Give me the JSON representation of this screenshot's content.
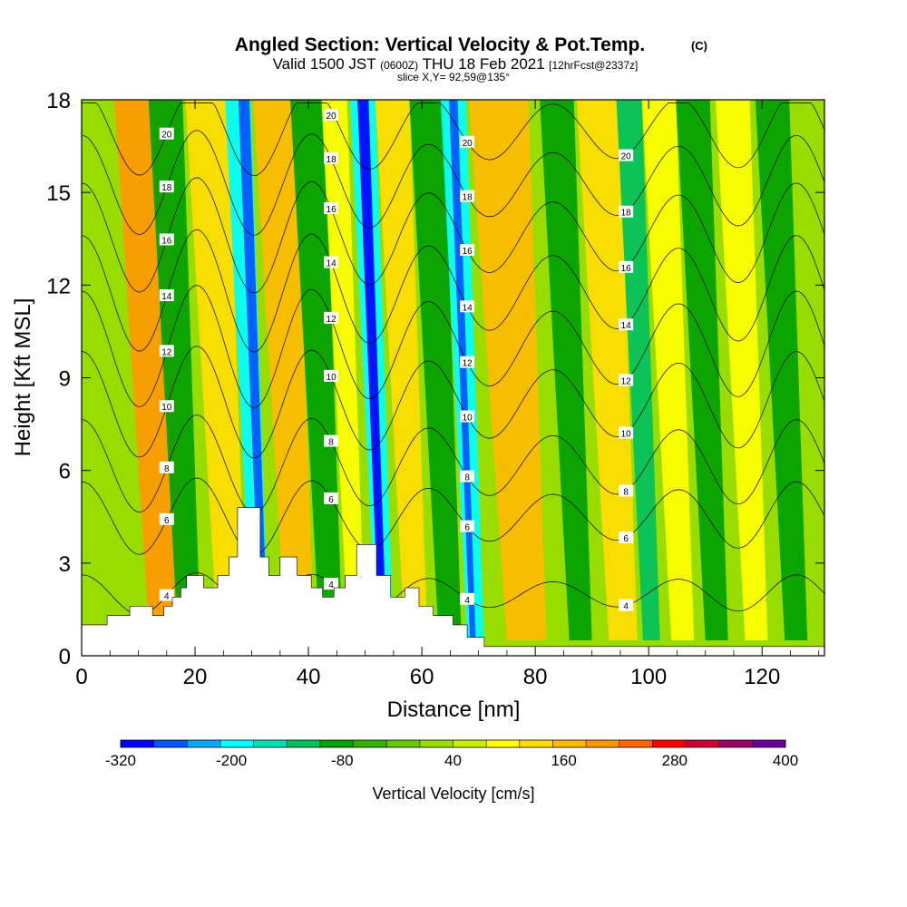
{
  "chart_data": {
    "type": "heatmap",
    "title": "Angled Section: Vertical Velocity & Pot.Temp.",
    "title_unit": "(C)",
    "subtitle_parts": {
      "a": "Valid 1500 JST",
      "b": "(0600Z)",
      "c": "THU 18 Feb 2021",
      "d": "[12hrFcst@2337z]"
    },
    "subtitle2": "slice X,Y= 92,59@135°",
    "xlabel": "Distance [nm]",
    "ylabel": "Height [Kft MSL]",
    "xlim": [
      0,
      131
    ],
    "ylim": [
      0,
      18
    ],
    "x_ticks": [
      "0",
      "20",
      "40",
      "60",
      "80",
      "100",
      "120"
    ],
    "y_ticks": [
      "0",
      "3",
      "6",
      "9",
      "12",
      "15",
      "18"
    ],
    "colorbar": {
      "label": "Vertical Velocity [cm/s]",
      "tick_labels": [
        "-320",
        "-200",
        "-80",
        "40",
        "160",
        "280",
        "400"
      ],
      "colors": [
        "#0000ff",
        "#0055ff",
        "#00aaff",
        "#00ffff",
        "#00e0b0",
        "#00c060",
        "#00a000",
        "#33b000",
        "#66c800",
        "#99dd00",
        "#ccee00",
        "#ffff00",
        "#ffdd00",
        "#ffbb00",
        "#ff9900",
        "#ff6600",
        "#ff0000",
        "#cc0033",
        "#990066",
        "#660099"
      ]
    },
    "bands": [
      {
        "x": 12,
        "w": 6,
        "color": "#ff9900"
      },
      {
        "x": 17,
        "w": 4,
        "color": "#00a000"
      },
      {
        "x": 24,
        "w": 5,
        "color": "#ffdd00"
      },
      {
        "x": 30,
        "w": 3,
        "color": "#00ffff"
      },
      {
        "x": 31.5,
        "w": 1.3,
        "color": "#0055ff"
      },
      {
        "x": 36,
        "w": 5,
        "color": "#ffbb00"
      },
      {
        "x": 42,
        "w": 4,
        "color": "#00a000"
      },
      {
        "x": 47,
        "w": 3,
        "color": "#ffff00"
      },
      {
        "x": 52,
        "w": 3,
        "color": "#00ffff"
      },
      {
        "x": 52.5,
        "w": 1.3,
        "color": "#0000ff"
      },
      {
        "x": 57,
        "w": 4,
        "color": "#ffdd00"
      },
      {
        "x": 63,
        "w": 4,
        "color": "#00a000"
      },
      {
        "x": 68,
        "w": 3,
        "color": "#00ffff"
      },
      {
        "x": 68.5,
        "w": 1,
        "color": "#0055ff"
      },
      {
        "x": 75,
        "w": 7,
        "color": "#ffbb00"
      },
      {
        "x": 86,
        "w": 4,
        "color": "#00a000"
      },
      {
        "x": 93,
        "w": 5,
        "color": "#ffdd00"
      },
      {
        "x": 99,
        "w": 3,
        "color": "#00c060"
      },
      {
        "x": 104,
        "w": 4,
        "color": "#ffff00"
      },
      {
        "x": 110,
        "w": 4,
        "color": "#00a000"
      },
      {
        "x": 117,
        "w": 4,
        "color": "#ffff00"
      },
      {
        "x": 124,
        "w": 4,
        "color": "#00a000"
      }
    ],
    "terrain_km_profile": [
      [
        0,
        1.0
      ],
      [
        4.5,
        1.0
      ],
      [
        4.5,
        1.3
      ],
      [
        8.5,
        1.3
      ],
      [
        8.5,
        1.6
      ],
      [
        12.5,
        1.6
      ],
      [
        12.5,
        1.3
      ],
      [
        14.5,
        1.3
      ],
      [
        14.5,
        1.6
      ],
      [
        16,
        1.6
      ],
      [
        16,
        1.9
      ],
      [
        17.5,
        1.9
      ],
      [
        17.5,
        2.2
      ],
      [
        18.5,
        2.2
      ],
      [
        18.5,
        2.6
      ],
      [
        21.5,
        2.6
      ],
      [
        21.5,
        2.2
      ],
      [
        24,
        2.2
      ],
      [
        24,
        2.6
      ],
      [
        26,
        2.6
      ],
      [
        26,
        3.2
      ],
      [
        27.5,
        3.2
      ],
      [
        27.5,
        4.8
      ],
      [
        31.5,
        4.8
      ],
      [
        31.5,
        3.2
      ],
      [
        33,
        3.2
      ],
      [
        33,
        2.6
      ],
      [
        35,
        2.6
      ],
      [
        35,
        3.2
      ],
      [
        38,
        3.2
      ],
      [
        38,
        2.6
      ],
      [
        40.5,
        2.6
      ],
      [
        40.5,
        2.2
      ],
      [
        42.5,
        2.2
      ],
      [
        42.5,
        1.9
      ],
      [
        44.5,
        1.9
      ],
      [
        44.5,
        2.2
      ],
      [
        46.5,
        2.2
      ],
      [
        46.5,
        2.6
      ],
      [
        48.5,
        2.6
      ],
      [
        48.5,
        3.6
      ],
      [
        52,
        3.6
      ],
      [
        52,
        2.6
      ],
      [
        54.5,
        2.6
      ],
      [
        54.5,
        1.9
      ],
      [
        57,
        1.9
      ],
      [
        57,
        2.2
      ],
      [
        59.5,
        2.2
      ],
      [
        59.5,
        1.6
      ],
      [
        62,
        1.6
      ],
      [
        62,
        1.3
      ],
      [
        65.5,
        1.3
      ],
      [
        65.5,
        1.0
      ],
      [
        68,
        1.0
      ],
      [
        68,
        0.6
      ],
      [
        71,
        0.6
      ],
      [
        71,
        0.3
      ],
      [
        131,
        0.3
      ]
    ],
    "theta_contours": [
      {
        "label": "4",
        "base": 2.0,
        "amp": 1.2
      },
      {
        "label": "6",
        "base": 4.5,
        "amp": 2.2
      },
      {
        "label": "8",
        "base": 6.2,
        "amp": 2.8
      },
      {
        "label": "10",
        "base": 8.2,
        "amp": 3.2
      },
      {
        "label": "12",
        "base": 10.0,
        "amp": 3.5
      },
      {
        "label": "14",
        "base": 11.8,
        "amp": 3.5
      },
      {
        "label": "16",
        "base": 13.6,
        "amp": 3.3
      },
      {
        "label": "18",
        "base": 15.3,
        "amp": 3.0
      },
      {
        "label": "20",
        "base": 17.0,
        "amp": 2.6
      }
    ]
  }
}
